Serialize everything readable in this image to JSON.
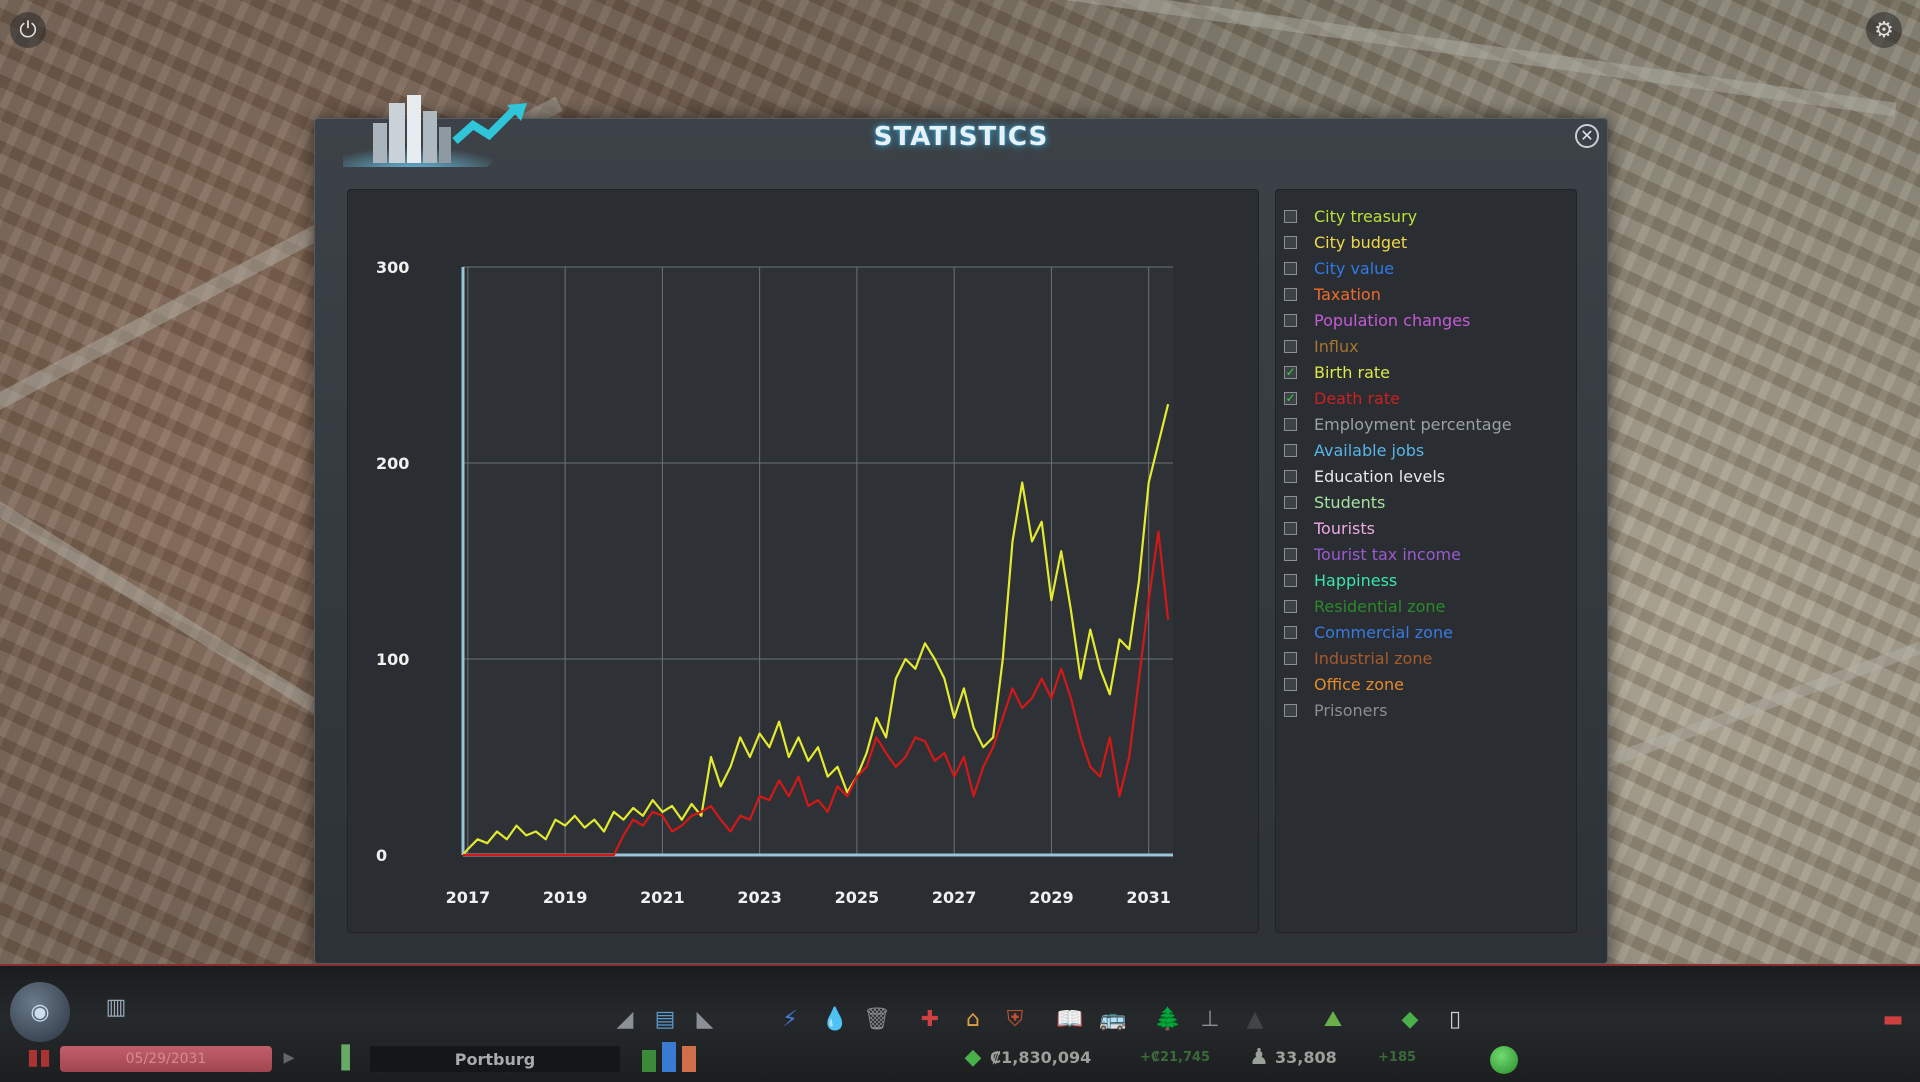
{
  "window": {
    "title": "STATISTICS"
  },
  "legend": {
    "items": [
      {
        "label": "City treasury",
        "color": "#b9e23a",
        "checked": false
      },
      {
        "label": "City budget",
        "color": "#f0d84a",
        "checked": false
      },
      {
        "label": "City value",
        "color": "#2f7ae6",
        "checked": false
      },
      {
        "label": "Taxation",
        "color": "#f06a2a",
        "checked": false
      },
      {
        "label": "Population changes",
        "color": "#c65ad8",
        "checked": false
      },
      {
        "label": "Influx",
        "color": "#a5752e",
        "checked": false
      },
      {
        "label": "Birth rate",
        "color": "#dde84a",
        "checked": true
      },
      {
        "label": "Death rate",
        "color": "#cc2020",
        "checked": true
      },
      {
        "label": "Employment percentage",
        "color": "#9aa0a4",
        "checked": false
      },
      {
        "label": "Available jobs",
        "color": "#5ab4e8",
        "checked": false
      },
      {
        "label": "Education levels",
        "color": "#e6eaee",
        "checked": false
      },
      {
        "label": "Students",
        "color": "#a8e0a0",
        "checked": false
      },
      {
        "label": "Tourists",
        "color": "#f0a8e0",
        "checked": false
      },
      {
        "label": "Tourist tax income",
        "color": "#9a5ad0",
        "checked": false
      },
      {
        "label": "Happiness",
        "color": "#3ae6a8",
        "checked": false
      },
      {
        "label": "Residential zone",
        "color": "#2a8a2a",
        "checked": false
      },
      {
        "label": "Commercial zone",
        "color": "#3a7ae0",
        "checked": false
      },
      {
        "label": "Industrial zone",
        "color": "#a85a2a",
        "checked": false
      },
      {
        "label": "Office zone",
        "color": "#e68a2a",
        "checked": false
      },
      {
        "label": "Prisoners",
        "color": "#8a8e92",
        "checked": false
      }
    ]
  },
  "chart_data": {
    "type": "line",
    "xlim": [
      2016.9,
      2031.5
    ],
    "ylim": [
      0,
      300
    ],
    "y_ticks": [
      0,
      100,
      200,
      300
    ],
    "x_ticks": [
      "2017",
      "2019",
      "2021",
      "2023",
      "2025",
      "2027",
      "2029",
      "2031"
    ],
    "grid": true,
    "series": [
      {
        "name": "Birth rate",
        "color": "#e3ea30",
        "x": [
          2016.9,
          2017.0,
          2017.2,
          2017.4,
          2017.6,
          2017.8,
          2018.0,
          2018.2,
          2018.4,
          2018.6,
          2018.8,
          2019.0,
          2019.2,
          2019.4,
          2019.6,
          2019.8,
          2020.0,
          2020.2,
          2020.4,
          2020.6,
          2020.8,
          2021.0,
          2021.2,
          2021.4,
          2021.6,
          2021.8,
          2022.0,
          2022.2,
          2022.4,
          2022.6,
          2022.8,
          2023.0,
          2023.2,
          2023.4,
          2023.6,
          2023.8,
          2024.0,
          2024.2,
          2024.4,
          2024.6,
          2024.8,
          2025.0,
          2025.2,
          2025.4,
          2025.6,
          2025.8,
          2026.0,
          2026.2,
          2026.4,
          2026.6,
          2026.8,
          2027.0,
          2027.2,
          2027.4,
          2027.6,
          2027.8,
          2028.0,
          2028.2,
          2028.4,
          2028.6,
          2028.8,
          2029.0,
          2029.2,
          2029.4,
          2029.6,
          2029.8,
          2030.0,
          2030.2,
          2030.4,
          2030.6,
          2030.8,
          2031.0,
          2031.2,
          2031.4
        ],
        "values": [
          0,
          3,
          8,
          6,
          12,
          8,
          15,
          10,
          12,
          8,
          18,
          15,
          20,
          14,
          18,
          12,
          22,
          18,
          24,
          20,
          28,
          22,
          25,
          18,
          26,
          20,
          50,
          35,
          45,
          60,
          50,
          62,
          55,
          68,
          50,
          60,
          48,
          55,
          40,
          45,
          32,
          40,
          52,
          70,
          60,
          90,
          100,
          95,
          108,
          100,
          90,
          70,
          85,
          65,
          55,
          60,
          100,
          160,
          190,
          160,
          170,
          130,
          155,
          125,
          90,
          115,
          95,
          82,
          110,
          105,
          140,
          190,
          210,
          230
        ]
      },
      {
        "name": "Death rate",
        "color": "#d41818",
        "x": [
          2016.9,
          2017.5,
          2018.0,
          2018.5,
          2019.0,
          2019.2,
          2019.4,
          2019.6,
          2019.8,
          2020.0,
          2020.2,
          2020.4,
          2020.6,
          2020.8,
          2021.0,
          2021.2,
          2021.4,
          2021.6,
          2021.8,
          2022.0,
          2022.2,
          2022.4,
          2022.6,
          2022.8,
          2023.0,
          2023.2,
          2023.4,
          2023.6,
          2023.8,
          2024.0,
          2024.2,
          2024.4,
          2024.6,
          2024.8,
          2025.0,
          2025.2,
          2025.4,
          2025.6,
          2025.8,
          2026.0,
          2026.2,
          2026.4,
          2026.6,
          2026.8,
          2027.0,
          2027.2,
          2027.4,
          2027.6,
          2027.8,
          2028.0,
          2028.2,
          2028.4,
          2028.6,
          2028.8,
          2029.0,
          2029.2,
          2029.4,
          2029.6,
          2029.8,
          2030.0,
          2030.2,
          2030.4,
          2030.6,
          2030.8,
          2031.0,
          2031.2,
          2031.4
        ],
        "values": [
          0,
          0,
          0,
          0,
          0,
          0,
          0,
          0,
          0,
          0,
          10,
          18,
          15,
          22,
          20,
          12,
          15,
          20,
          22,
          25,
          18,
          12,
          20,
          18,
          30,
          28,
          38,
          30,
          40,
          25,
          28,
          22,
          35,
          30,
          40,
          45,
          60,
          52,
          45,
          50,
          60,
          58,
          48,
          52,
          40,
          50,
          30,
          45,
          55,
          70,
          85,
          75,
          80,
          90,
          80,
          95,
          80,
          60,
          45,
          40,
          60,
          30,
          50,
          90,
          130,
          165,
          120
        ]
      }
    ]
  },
  "bottom_bar": {
    "date": "05/29/2031",
    "city_name": "Portburg",
    "money": "₡1,830,094",
    "money_income": "+₡21,745",
    "population": "33,808",
    "population_change": "+185"
  }
}
